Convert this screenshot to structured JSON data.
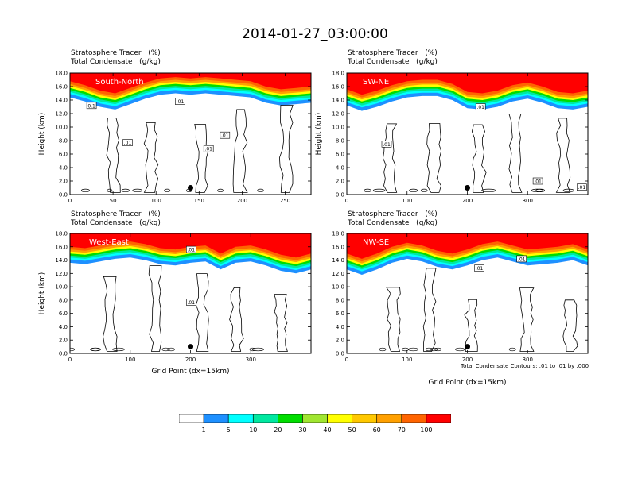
{
  "title": "2014-01-27_03:00:00",
  "colors": {
    "frame": "#000000",
    "contour": "#000000",
    "marker": "#000000",
    "levels": [
      "#ffffff",
      "#1e90ff",
      "#00ffff",
      "#00e8a0",
      "#00dd00",
      "#a0e630",
      "#ffff00",
      "#ffc800",
      "#ffa000",
      "#ff6400",
      "#ff0000"
    ]
  },
  "colorbar": {
    "labels": [
      "1",
      "5",
      "10",
      "20",
      "30",
      "40",
      "50",
      "60",
      "70",
      "100"
    ]
  },
  "footnote": "Total Condensate Contours: .01 to .01 by .000",
  "chart_data": [
    {
      "type": "heatmap",
      "title": "South-North",
      "subtitle_lines": [
        "Stratosphere Tracer   (%)",
        "Total Condensate   (g/kg)"
      ],
      "xlabel": "",
      "ylabel": "Height (km)",
      "xlim": [
        0,
        280
      ],
      "ylim": [
        0,
        18
      ],
      "xticks": [
        0,
        50,
        100,
        150,
        200,
        250
      ],
      "yticks": [
        0,
        2,
        4,
        6,
        8,
        10,
        12,
        14,
        16,
        18
      ],
      "ytick_labels": [
        "0.0",
        "2.0",
        "4.0",
        "6.0",
        "8.0",
        "10.0",
        "12.0",
        "14.0",
        "16.0",
        "18.0"
      ],
      "tracer_base_km": [
        15.8,
        15.2,
        14.4,
        14.0,
        14.8,
        15.6,
        16.2,
        16.4,
        16.2,
        16.4,
        16.2,
        16.0,
        15.8,
        15.0,
        14.6,
        14.8,
        15.0
      ],
      "contour_labels": [
        {
          "text": "0.1",
          "x": 25,
          "y": 13.2
        },
        {
          "text": ".01",
          "x": 67,
          "y": 7.7
        },
        {
          "text": ".01",
          "x": 128,
          "y": 13.8
        },
        {
          "text": ".01",
          "x": 161,
          "y": 6.8
        },
        {
          "text": ".01",
          "x": 180,
          "y": 8.8
        }
      ],
      "marker": {
        "x": 140,
        "y": 1.0
      }
    },
    {
      "type": "heatmap",
      "title": "SW-NE",
      "subtitle_lines": [
        "Stratosphere Tracer   (%)",
        "Total Condensate   (g/kg)"
      ],
      "xlabel": "",
      "ylabel": "Height (km)",
      "xlim": [
        0,
        400
      ],
      "ylim": [
        0,
        18
      ],
      "xticks": [
        0,
        100,
        200,
        300
      ],
      "yticks": [
        0,
        2,
        4,
        6,
        8,
        10,
        12,
        14,
        16,
        18
      ],
      "ytick_labels": [
        "0.0",
        "2.0",
        "4.0",
        "6.0",
        "8.0",
        "10.0",
        "12.0",
        "14.0",
        "16.0",
        "18.0"
      ],
      "tracer_base_km": [
        14.6,
        13.8,
        14.4,
        15.2,
        15.8,
        16.0,
        16.0,
        15.4,
        14.2,
        14.0,
        14.4,
        15.2,
        15.6,
        15.0,
        14.2,
        14.0,
        14.4
      ],
      "contour_labels": [
        {
          "text": ".01",
          "x": 66,
          "y": 7.5
        },
        {
          "text": ".01",
          "x": 222,
          "y": 13.0
        },
        {
          "text": ".01",
          "x": 317,
          "y": 2.0
        },
        {
          "text": ".01",
          "x": 390,
          "y": 1.1
        }
      ],
      "marker": {
        "x": 200,
        "y": 1.0
      }
    },
    {
      "type": "heatmap",
      "title": "West-East",
      "subtitle_lines": [
        "Stratosphere Tracer   (%)",
        "Total Condensate   (g/kg)"
      ],
      "xlabel": "Grid Point (dx=15km)",
      "ylabel": "Height (km)",
      "xlim": [
        0,
        400
      ],
      "ylim": [
        0,
        18
      ],
      "xticks": [
        0,
        100,
        200,
        300
      ],
      "yticks": [
        0,
        2,
        4,
        6,
        8,
        10,
        12,
        14,
        16,
        18
      ],
      "ytick_labels": [
        "0.0",
        "2.0",
        "4.0",
        "6.0",
        "8.0",
        "10.0",
        "12.0",
        "14.0",
        "16.0",
        "18.0"
      ],
      "tracer_base_km": [
        15.0,
        14.8,
        15.2,
        15.6,
        15.8,
        15.4,
        14.8,
        14.6,
        15.0,
        15.2,
        14.0,
        15.0,
        15.2,
        14.6,
        13.8,
        13.4,
        14.0
      ],
      "contour_labels": [
        {
          "text": ".01",
          "x": 201,
          "y": 15.6
        },
        {
          "text": ".01",
          "x": 201,
          "y": 7.7
        }
      ],
      "marker": {
        "x": 200,
        "y": 1.0
      }
    },
    {
      "type": "heatmap",
      "title": "NW-SE",
      "subtitle_lines": [
        "Stratosphere Tracer   (%)",
        "Total Condensate   (g/kg)"
      ],
      "xlabel": "Grid Point (dx=15km)",
      "ylabel": "",
      "xlim": [
        0,
        400
      ],
      "ylim": [
        0,
        18
      ],
      "xticks": [
        0,
        100,
        200,
        300
      ],
      "yticks": [
        0,
        2,
        4,
        6,
        8,
        10,
        12,
        14,
        16,
        18
      ],
      "ytick_labels": [
        "0.0",
        "2.0",
        "4.0",
        "6.0",
        "8.0",
        "10.0",
        "12.0",
        "14.0",
        "16.0",
        "18.0"
      ],
      "tracer_base_km": [
        14.0,
        13.2,
        14.0,
        15.0,
        15.6,
        15.2,
        14.4,
        14.0,
        14.6,
        15.4,
        15.8,
        15.2,
        14.6,
        14.8,
        15.0,
        15.4,
        14.6
      ],
      "contour_labels": [
        {
          "text": ".01",
          "x": 220,
          "y": 12.8
        },
        {
          "text": ".01",
          "x": 290,
          "y": 14.2
        }
      ],
      "marker": {
        "x": 200,
        "y": 1.0
      }
    }
  ]
}
